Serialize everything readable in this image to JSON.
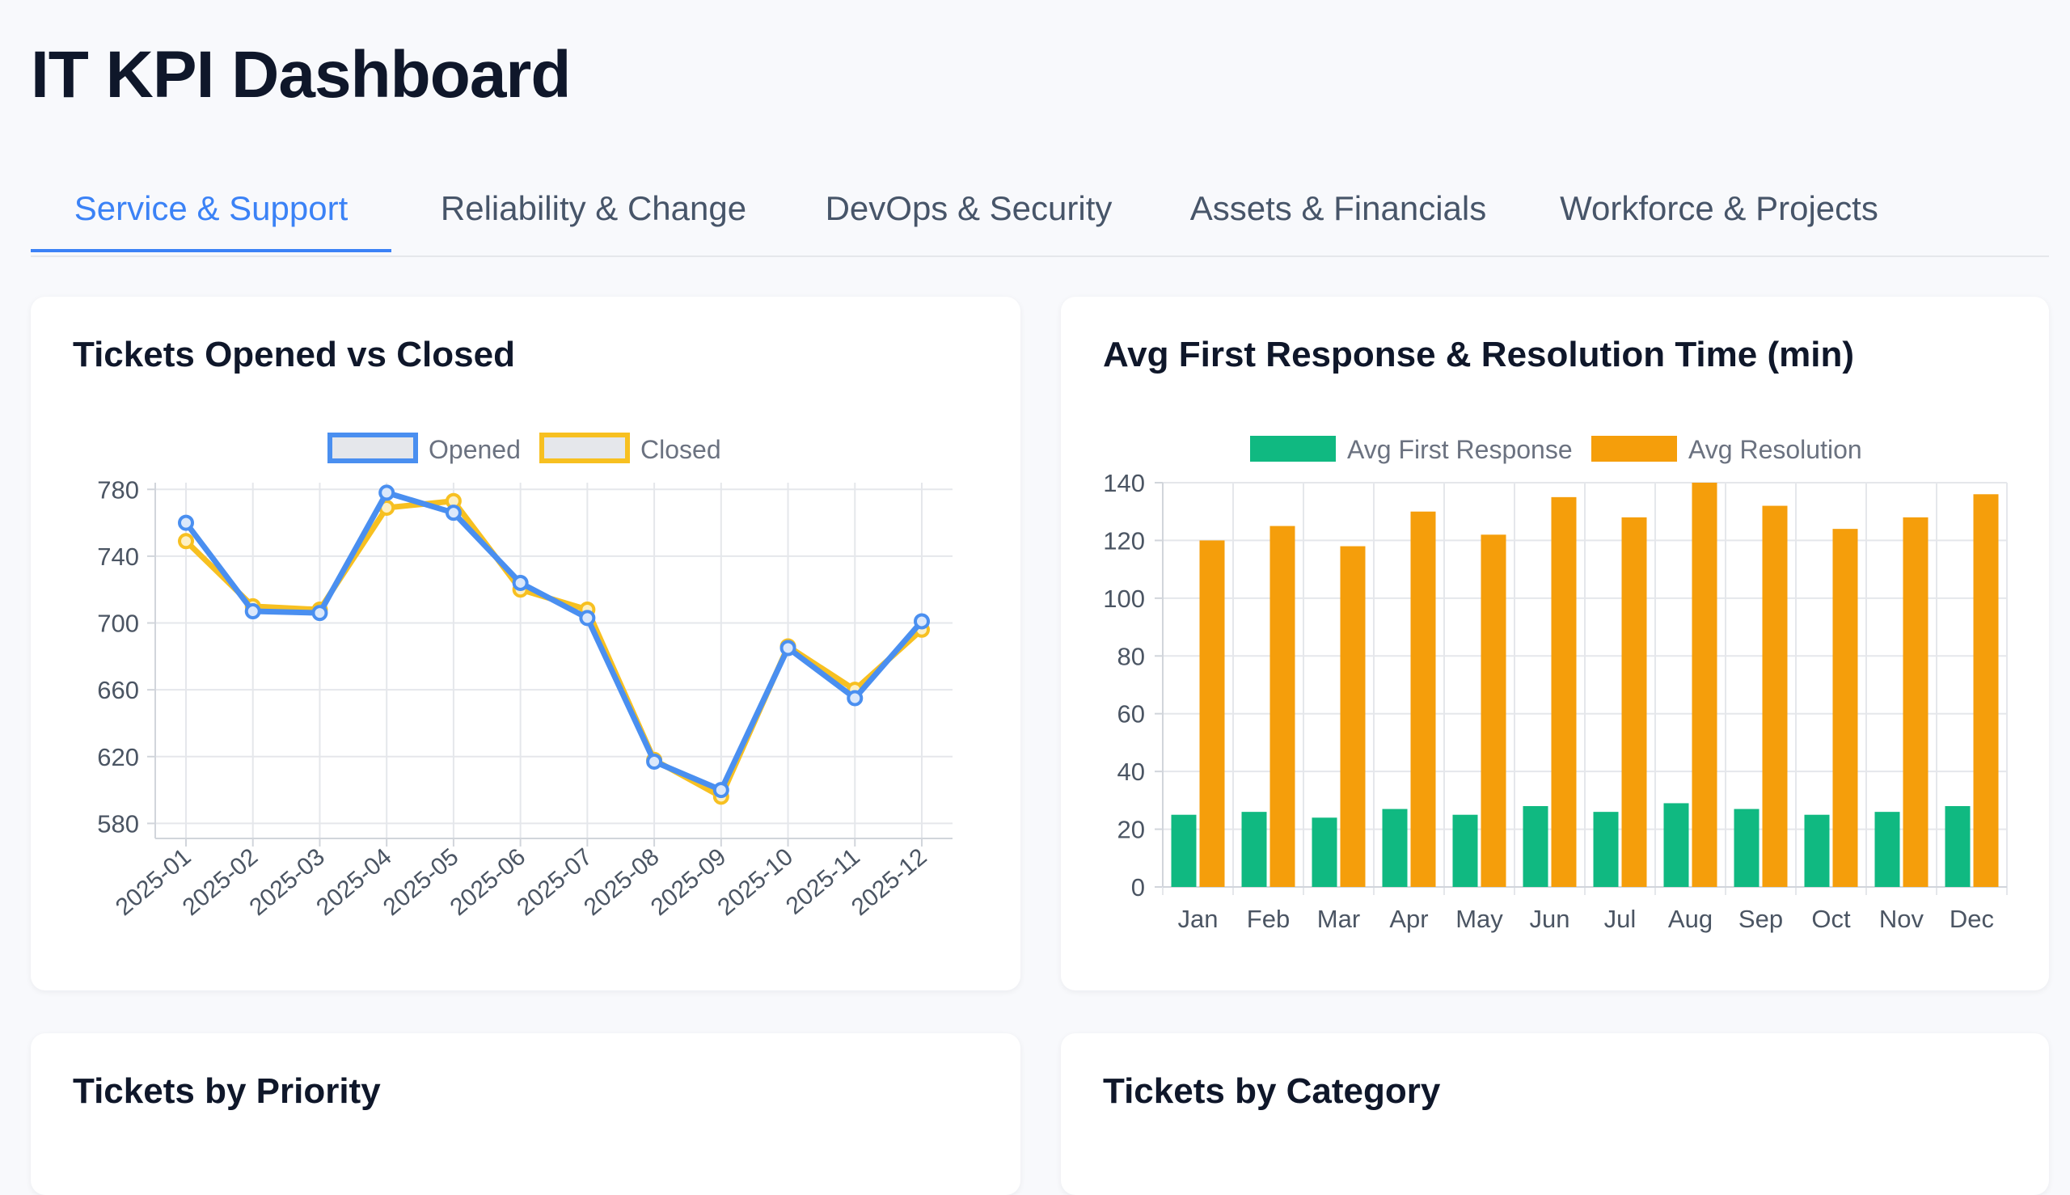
{
  "app": {
    "title": "IT KPI Dashboard"
  },
  "tabs": [
    {
      "label": "Service & Support",
      "active": true
    },
    {
      "label": "Reliability & Change",
      "active": false
    },
    {
      "label": "DevOps & Security",
      "active": false
    },
    {
      "label": "Assets & Financials",
      "active": false
    },
    {
      "label": "Workforce & Projects",
      "active": false
    }
  ],
  "colors": {
    "accent": "#3b82f6",
    "opened": "#4a8ff0",
    "closed": "#f7c021",
    "first_response": "#10b981",
    "resolution": "#f59e0b"
  },
  "cards": {
    "tickets_opened_closed": {
      "title": "Tickets Opened vs Closed"
    },
    "response_resolution": {
      "title": "Avg First Response & Resolution Time (min)"
    },
    "tickets_by_priority": {
      "title": "Tickets by Priority"
    },
    "tickets_by_category": {
      "title": "Tickets by Category"
    }
  },
  "chart_data": [
    {
      "type": "line",
      "title": "Tickets Opened vs Closed",
      "categories": [
        "2025-01",
        "2025-02",
        "2025-03",
        "2025-04",
        "2025-05",
        "2025-06",
        "2025-07",
        "2025-08",
        "2025-09",
        "2025-10",
        "2025-11",
        "2025-12"
      ],
      "series": [
        {
          "name": "Opened",
          "values": [
            760,
            707,
            706,
            778,
            766,
            724,
            703,
            617,
            600,
            685,
            655,
            701
          ]
        },
        {
          "name": "Closed",
          "values": [
            749,
            710,
            708,
            769,
            773,
            720,
            708,
            618,
            596,
            686,
            660,
            696
          ]
        }
      ],
      "yticks": [
        580,
        620,
        660,
        700,
        740,
        780
      ],
      "ylim": [
        571,
        784
      ],
      "grid": true,
      "legend": "top"
    },
    {
      "type": "bar",
      "title": "Avg First Response & Resolution Time (min)",
      "categories": [
        "Jan",
        "Feb",
        "Mar",
        "Apr",
        "May",
        "Jun",
        "Jul",
        "Aug",
        "Sep",
        "Oct",
        "Nov",
        "Dec"
      ],
      "series": [
        {
          "name": "Avg First Response",
          "values": [
            25,
            26,
            24,
            27,
            25,
            28,
            26,
            29,
            27,
            25,
            26,
            28
          ]
        },
        {
          "name": "Avg Resolution",
          "values": [
            120,
            125,
            118,
            130,
            122,
            135,
            128,
            140,
            132,
            124,
            128,
            136
          ]
        }
      ],
      "yticks": [
        0,
        20,
        40,
        60,
        80,
        100,
        120,
        140
      ],
      "ylim": [
        0,
        140
      ],
      "grid": true,
      "legend": "top"
    }
  ]
}
